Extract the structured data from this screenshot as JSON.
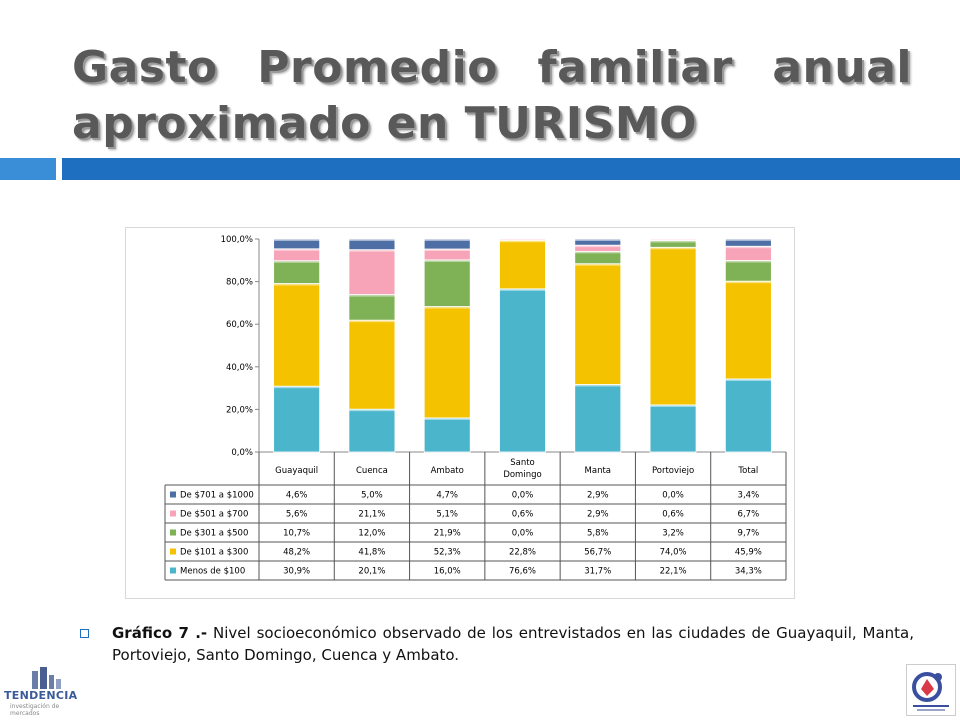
{
  "slide": {
    "title_line1": [
      "Gasto",
      "Promedio",
      "familiar",
      "anual"
    ],
    "title_line2": "aproximado en TURISMO",
    "caption_bold": "Gráfico 7 .-",
    "caption_text": " Nivel socioeconómico observado de los entrevistados en las ciudades de Guayaquil, Manta, Portoviejo, Santo Domingo, Cuenca y Ambato.",
    "logo_left_text": "TENDENCIA",
    "logo_left_sub": "investigación de mercados"
  },
  "colors": {
    "accent_light": "#3a8ed8",
    "accent_dark": "#1f6fc0",
    "title_text": "#595959"
  },
  "chart_data": {
    "type": "bar",
    "stacked": true,
    "percent": true,
    "categories": [
      "Guayaquil",
      "Cuenca",
      "Ambato",
      "Santo Domingo",
      "Manta",
      "Portoviejo",
      "Total"
    ],
    "y_ticks": [
      "0,0%",
      "20,0%",
      "40,0%",
      "60,0%",
      "80,0%",
      "100,0%"
    ],
    "ylim": [
      0,
      100
    ],
    "series": [
      {
        "name": "Menos de $100",
        "color": "#4bb5cc",
        "values": [
          30.9,
          20.1,
          16.0,
          76.6,
          31.7,
          22.1,
          34.3
        ],
        "labels": [
          "30,9%",
          "20,1%",
          "16,0%",
          "76,6%",
          "31,7%",
          "22,1%",
          "34,3%"
        ]
      },
      {
        "name": "De $101  a $300",
        "color": "#f5c200",
        "values": [
          48.2,
          41.8,
          52.3,
          22.8,
          56.7,
          74.0,
          45.9
        ],
        "labels": [
          "48,2%",
          "41,8%",
          "52,3%",
          "22,8%",
          "56,7%",
          "74,0%",
          "45,9%"
        ]
      },
      {
        "name": "De $301  a $500",
        "color": "#7fb256",
        "values": [
          10.7,
          12.0,
          21.9,
          0.0,
          5.8,
          3.2,
          9.7
        ],
        "labels": [
          "10,7%",
          "12,0%",
          "21,9%",
          "0,0%",
          "5,8%",
          "3,2%",
          "9,7%"
        ]
      },
      {
        "name": "De $501  a $700",
        "color": "#f7a3b8",
        "values": [
          5.6,
          21.1,
          5.1,
          0.6,
          2.9,
          0.6,
          6.7
        ],
        "labels": [
          "5,6%",
          "21,1%",
          "5,1%",
          "0,6%",
          "2,9%",
          "0,6%",
          "6,7%"
        ]
      },
      {
        "name": "De $701  a $1000",
        "color": "#4d6fa6",
        "values": [
          4.6,
          5.0,
          4.7,
          0.0,
          2.9,
          0.0,
          3.4
        ],
        "labels": [
          "4,6%",
          "5,0%",
          "4,7%",
          "0,0%",
          "2,9%",
          "0,0%",
          "3,4%"
        ]
      }
    ],
    "grid": false,
    "legend": "data-table"
  }
}
